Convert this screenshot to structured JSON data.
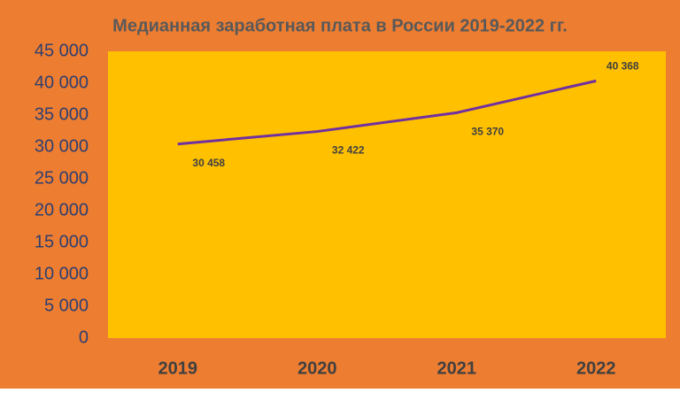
{
  "chart_data": {
    "type": "line",
    "title": "Медианная заработная плата в России 2019-2022 гг.",
    "categories": [
      "2019",
      "2020",
      "2021",
      "2022"
    ],
    "series": [
      {
        "name": "Медианная заработная плата",
        "color": "#7030a0",
        "values": [
          30458,
          32422,
          35370,
          40368
        ],
        "value_labels": [
          "30 458",
          "32 422",
          "35 370",
          "40 368"
        ]
      }
    ],
    "ylim": [
      0,
      45000
    ],
    "yticks": [
      0,
      {
        "value": 5000,
        "label": "5 000"
      },
      {
        "value": 10000,
        "label": "10 000"
      },
      {
        "value": 15000,
        "label": "15 000"
      },
      {
        "value": 20000,
        "label": "20 000"
      },
      {
        "value": 25000,
        "label": "25 000"
      },
      {
        "value": 30000,
        "label": "30 000"
      },
      {
        "value": 35000,
        "label": "35 000"
      },
      {
        "value": 40000,
        "label": "40 000"
      },
      {
        "value": 45000,
        "label": "45 000"
      }
    ],
    "grid": false
  }
}
